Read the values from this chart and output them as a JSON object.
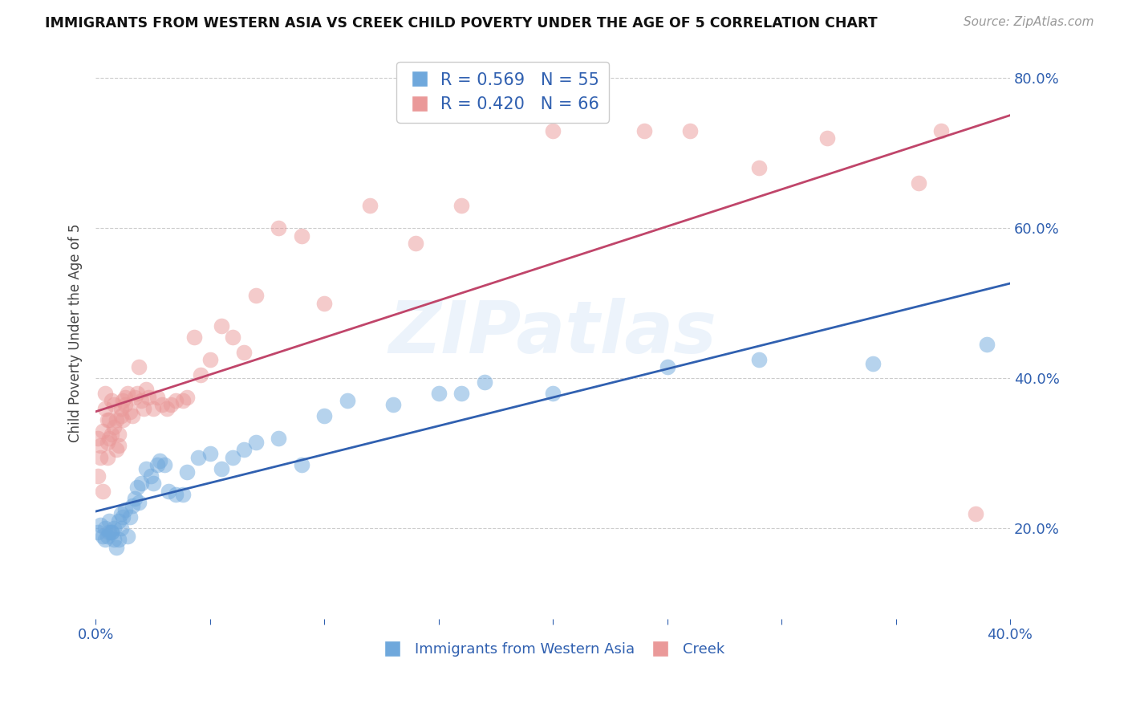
{
  "title": "IMMIGRANTS FROM WESTERN ASIA VS CREEK CHILD POVERTY UNDER THE AGE OF 5 CORRELATION CHART",
  "source": "Source: ZipAtlas.com",
  "ylabel": "Child Poverty Under the Age of 5",
  "blue_label": "Immigrants from Western Asia",
  "pink_label": "Creek",
  "blue_R": 0.569,
  "blue_N": 55,
  "pink_R": 0.42,
  "pink_N": 66,
  "xlim": [
    0.0,
    0.4
  ],
  "ylim": [
    0.08,
    0.84
  ],
  "xticks": [
    0.0,
    0.05,
    0.1,
    0.15,
    0.2,
    0.25,
    0.3,
    0.35,
    0.4
  ],
  "yticks": [
    0.2,
    0.4,
    0.6,
    0.8
  ],
  "blue_color": "#6fa8dc",
  "pink_color": "#ea9999",
  "blue_line_color": "#3060b0",
  "pink_line_color": "#c0456a",
  "bg_color": "#ffffff",
  "grid_color": "#cccccc",
  "blue_x": [
    0.001,
    0.002,
    0.003,
    0.004,
    0.004,
    0.005,
    0.006,
    0.006,
    0.007,
    0.007,
    0.008,
    0.008,
    0.009,
    0.01,
    0.01,
    0.011,
    0.011,
    0.012,
    0.013,
    0.014,
    0.015,
    0.016,
    0.017,
    0.018,
    0.019,
    0.02,
    0.022,
    0.024,
    0.025,
    0.027,
    0.028,
    0.03,
    0.032,
    0.035,
    0.038,
    0.04,
    0.045,
    0.05,
    0.055,
    0.06,
    0.065,
    0.07,
    0.08,
    0.09,
    0.1,
    0.11,
    0.13,
    0.15,
    0.16,
    0.17,
    0.2,
    0.25,
    0.29,
    0.34,
    0.39
  ],
  "blue_y": [
    0.195,
    0.205,
    0.19,
    0.185,
    0.2,
    0.19,
    0.195,
    0.21,
    0.195,
    0.195,
    0.2,
    0.185,
    0.175,
    0.185,
    0.21,
    0.2,
    0.22,
    0.215,
    0.225,
    0.19,
    0.215,
    0.23,
    0.24,
    0.255,
    0.235,
    0.26,
    0.28,
    0.27,
    0.26,
    0.285,
    0.29,
    0.285,
    0.25,
    0.245,
    0.245,
    0.275,
    0.295,
    0.3,
    0.28,
    0.295,
    0.305,
    0.315,
    0.32,
    0.285,
    0.35,
    0.37,
    0.365,
    0.38,
    0.38,
    0.395,
    0.38,
    0.415,
    0.425,
    0.42,
    0.445
  ],
  "pink_x": [
    0.001,
    0.001,
    0.002,
    0.002,
    0.003,
    0.003,
    0.004,
    0.004,
    0.005,
    0.005,
    0.005,
    0.006,
    0.006,
    0.007,
    0.007,
    0.008,
    0.008,
    0.009,
    0.009,
    0.01,
    0.01,
    0.011,
    0.011,
    0.012,
    0.012,
    0.013,
    0.013,
    0.014,
    0.015,
    0.016,
    0.017,
    0.018,
    0.019,
    0.02,
    0.021,
    0.022,
    0.023,
    0.025,
    0.027,
    0.029,
    0.031,
    0.033,
    0.035,
    0.038,
    0.04,
    0.043,
    0.046,
    0.05,
    0.055,
    0.06,
    0.065,
    0.07,
    0.08,
    0.09,
    0.1,
    0.12,
    0.14,
    0.16,
    0.2,
    0.24,
    0.26,
    0.29,
    0.32,
    0.36,
    0.37,
    0.385
  ],
  "pink_y": [
    0.27,
    0.32,
    0.295,
    0.31,
    0.25,
    0.33,
    0.36,
    0.38,
    0.295,
    0.315,
    0.345,
    0.32,
    0.345,
    0.325,
    0.37,
    0.335,
    0.365,
    0.305,
    0.345,
    0.31,
    0.325,
    0.35,
    0.36,
    0.37,
    0.345,
    0.365,
    0.375,
    0.38,
    0.355,
    0.35,
    0.375,
    0.38,
    0.415,
    0.37,
    0.36,
    0.385,
    0.375,
    0.36,
    0.375,
    0.365,
    0.36,
    0.365,
    0.37,
    0.37,
    0.375,
    0.455,
    0.405,
    0.425,
    0.47,
    0.455,
    0.435,
    0.51,
    0.6,
    0.59,
    0.5,
    0.63,
    0.58,
    0.63,
    0.73,
    0.73,
    0.73,
    0.68,
    0.72,
    0.66,
    0.73,
    0.22
  ]
}
